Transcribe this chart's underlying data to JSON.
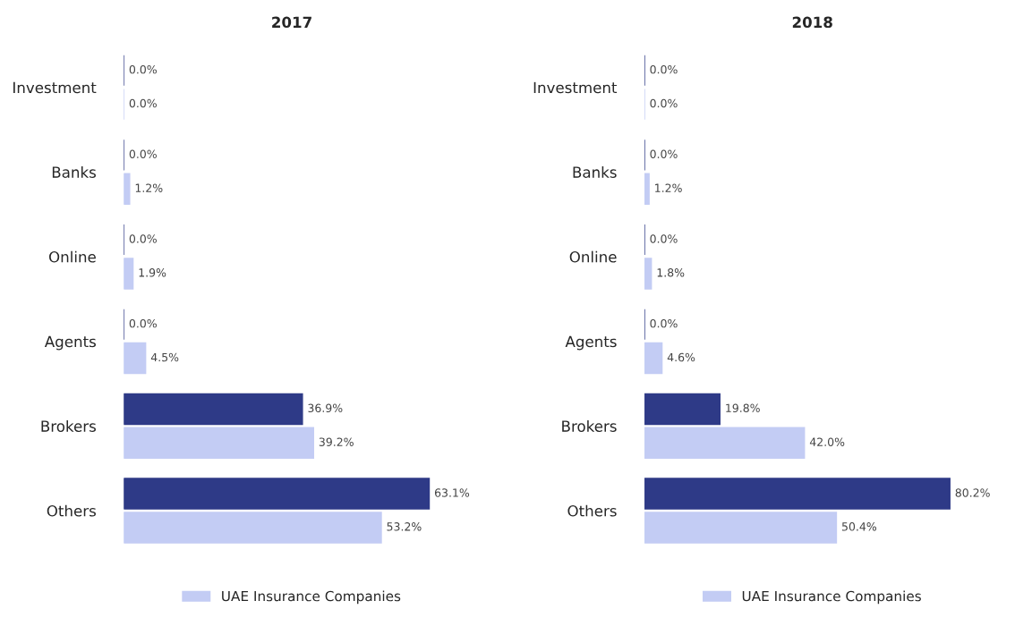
{
  "chart_data": [
    {
      "type": "bar",
      "orientation": "horizontal",
      "title": "2017",
      "categories": [
        "Investment",
        "Banks",
        "Online",
        "Agents",
        "Brokers",
        "Others"
      ],
      "legend": "bottom",
      "grid": false,
      "tick_labels": "y",
      "series": [
        {
          "color": "#2e3a87",
          "values": [
            0.0,
            0.0,
            0.0,
            0.0,
            36.9,
            63.1
          ],
          "value_labels": [
            "0.0%",
            "0.0%",
            "0.0%",
            "0.0%",
            "36.9%",
            "63.1%"
          ]
        },
        {
          "name": "UAE Insurance Companies",
          "color": "#c3ccf4",
          "values": [
            0.0,
            1.2,
            1.9,
            4.5,
            39.2,
            53.2
          ],
          "value_labels": [
            "0.0%",
            "1.2%",
            "1.9%",
            "4.5%",
            "39.2%",
            "53.2%"
          ]
        }
      ]
    },
    {
      "type": "bar",
      "orientation": "horizontal",
      "title": "2018",
      "categories": [
        "Investment",
        "Banks",
        "Online",
        "Agents",
        "Brokers",
        "Others"
      ],
      "legend": "bottom",
      "grid": false,
      "tick_labels": "y",
      "series": [
        {
          "color": "#2e3a87",
          "values": [
            0.0,
            0.0,
            0.0,
            0.0,
            19.8,
            80.2
          ],
          "value_labels": [
            "0.0%",
            "0.0%",
            "0.0%",
            "0.0%",
            "19.8%",
            "80.2%"
          ]
        },
        {
          "name": "UAE Insurance Companies",
          "color": "#c3ccf4",
          "values": [
            0.0,
            1.2,
            1.8,
            4.6,
            42.0,
            50.4
          ],
          "value_labels": [
            "0.0%",
            "1.2%",
            "1.8%",
            "4.6%",
            "42.0%",
            "50.4%"
          ]
        }
      ]
    }
  ]
}
